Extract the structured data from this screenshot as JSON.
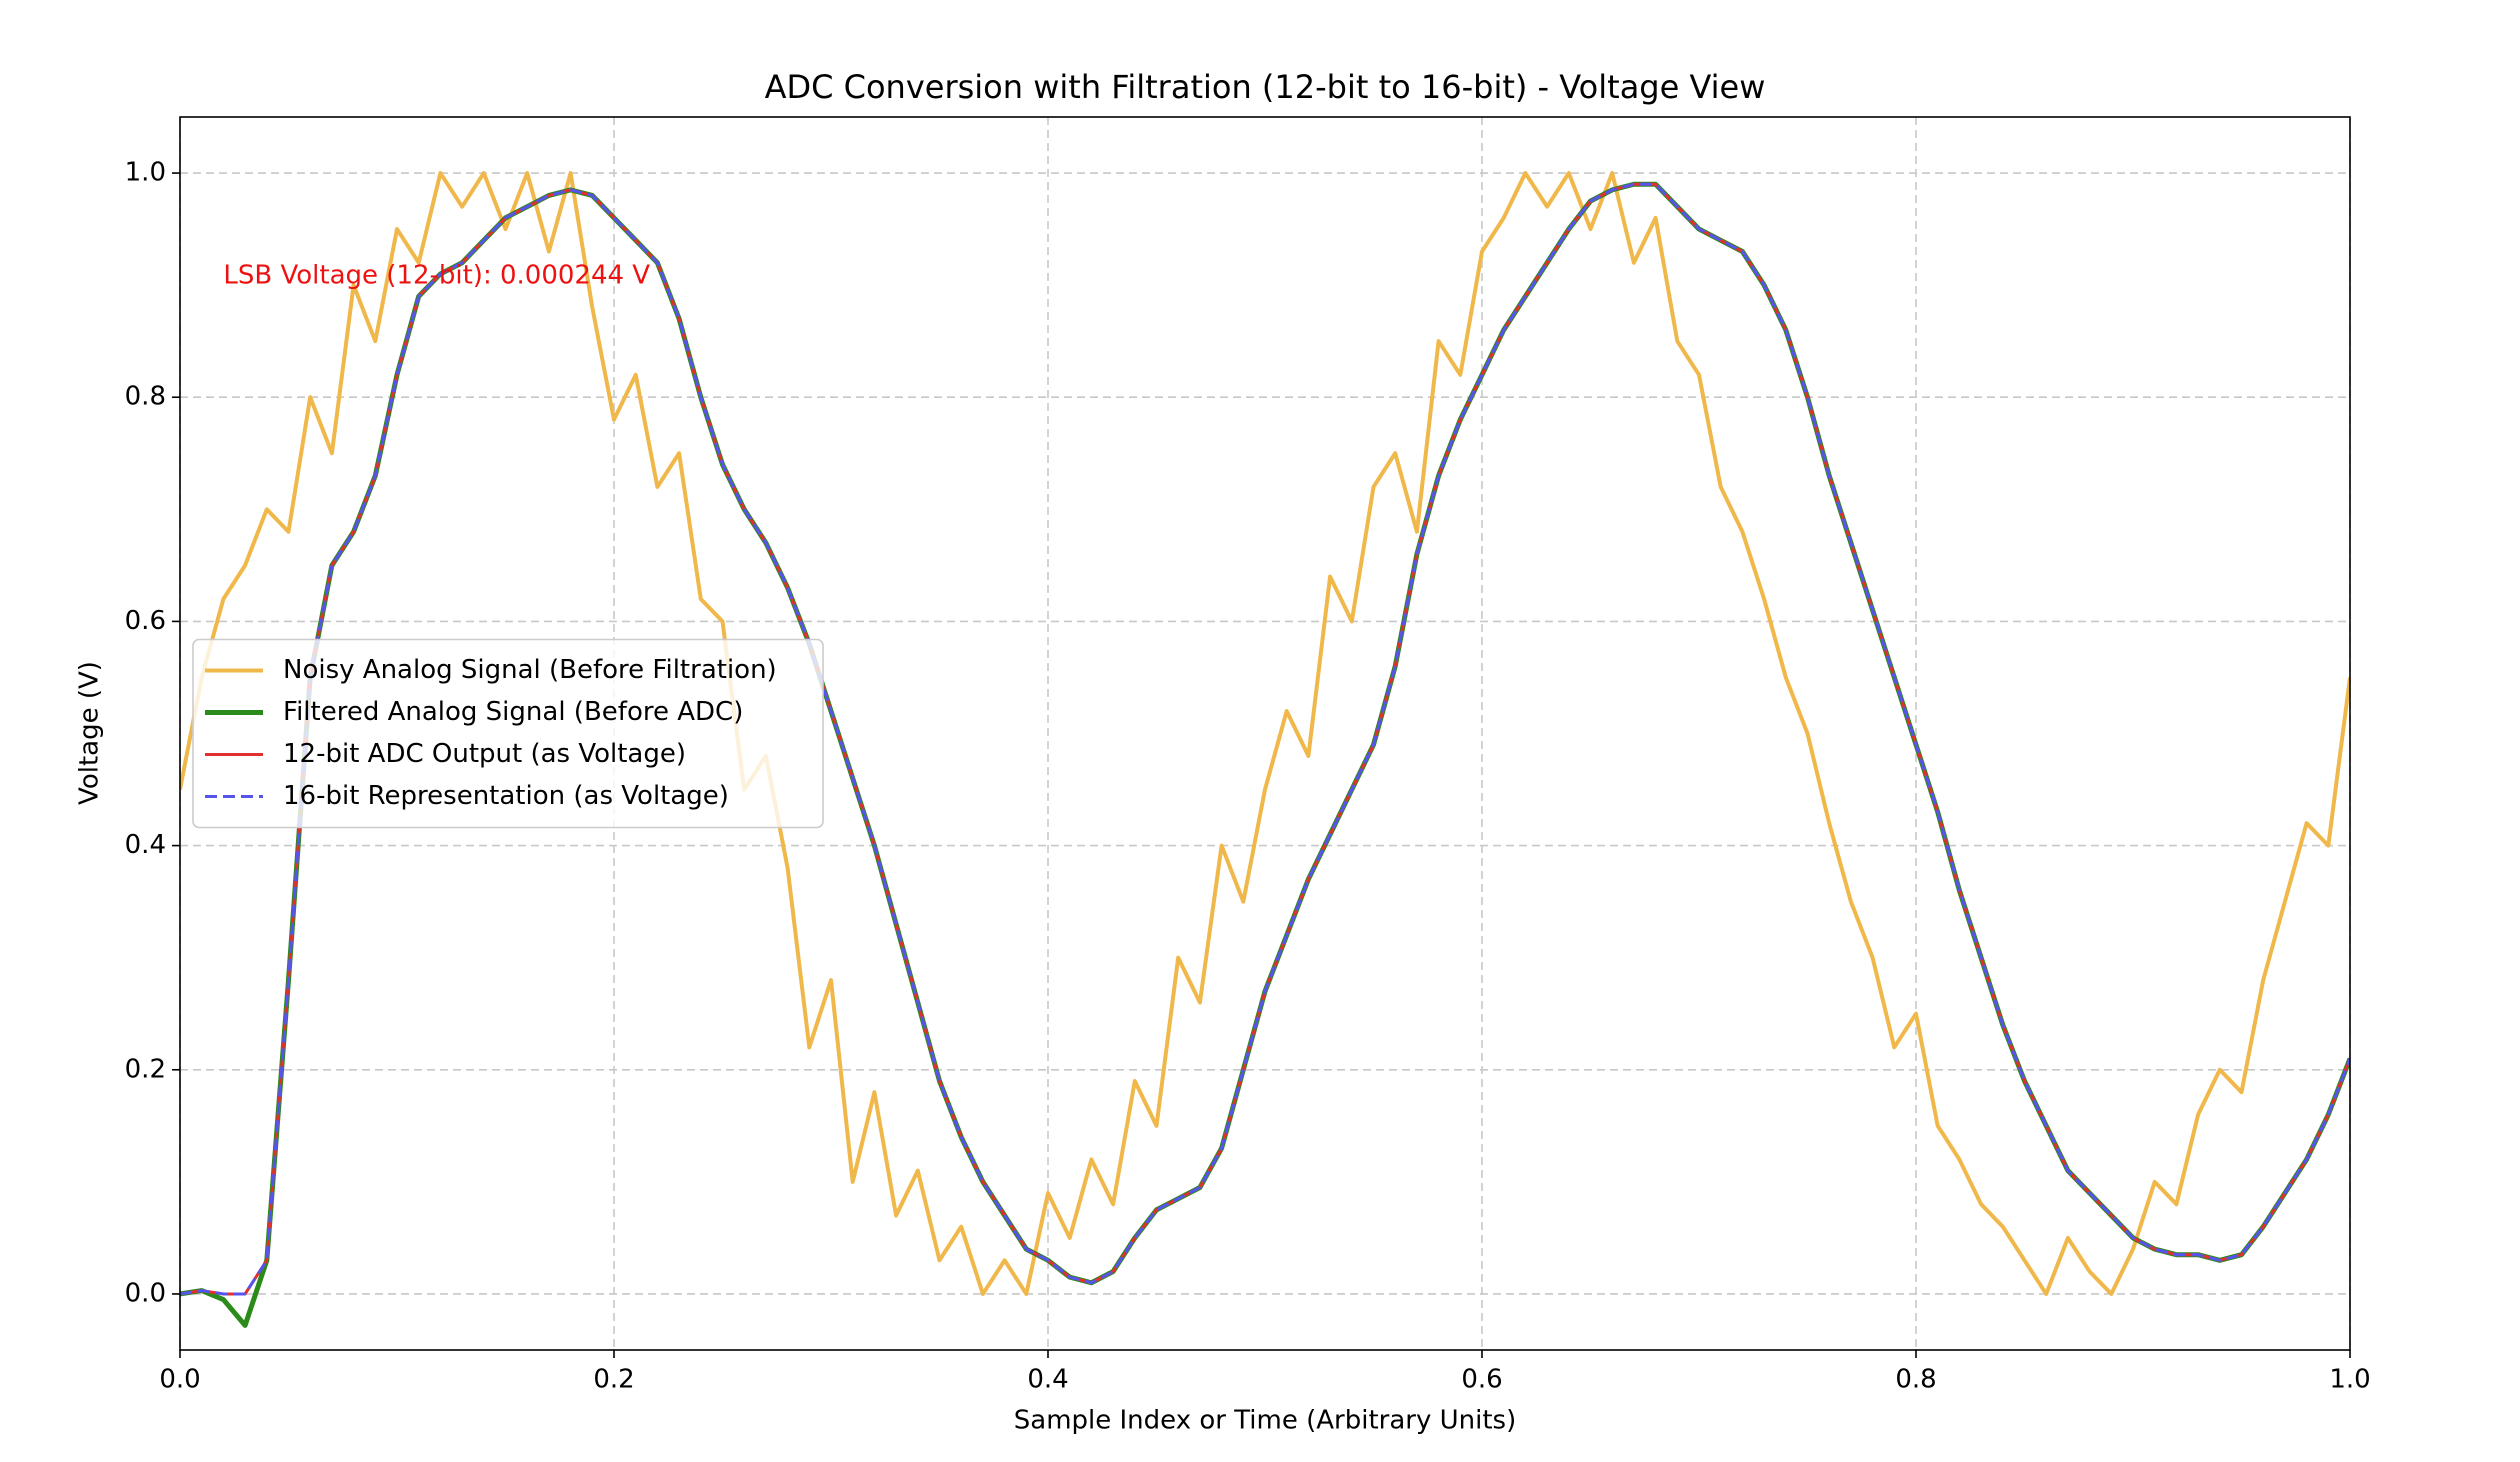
{
  "chart_data": {
    "type": "line",
    "title": "ADC Conversion with Filtration (12-bit to 16-bit) - Voltage View",
    "x_label": "Sample Index or Time (Arbitrary Units)",
    "y_label": "Voltage (V)",
    "annotation": "LSB Voltage (12-bit): 0.000244 V",
    "annotation_color": "#ee1111",
    "xlim": [
      0,
      1
    ],
    "ylim": [
      -0.05,
      1.05
    ],
    "xticks": [
      {
        "value": 0,
        "label": "0.0"
      },
      0.2,
      0.4,
      0.6,
      0.8,
      {
        "value": 1,
        "label": "1.0"
      }
    ],
    "yticks": [
      {
        "value": 0,
        "label": "0.0"
      },
      0.2,
      0.4,
      0.6,
      0.8,
      {
        "value": 1,
        "label": "1.0"
      }
    ],
    "grid": true,
    "legend": "center left",
    "x": [
      0.0,
      0.01,
      0.02,
      0.03,
      0.04,
      0.05,
      0.06,
      0.07,
      0.08,
      0.09,
      0.1,
      0.11,
      0.12,
      0.13,
      0.14,
      0.15,
      0.16,
      0.17,
      0.18,
      0.19,
      0.2,
      0.21,
      0.22,
      0.23,
      0.24,
      0.25,
      0.26,
      0.27,
      0.28,
      0.29,
      0.3,
      0.31,
      0.32,
      0.33,
      0.34,
      0.35,
      0.36,
      0.37,
      0.38,
      0.39,
      0.4,
      0.41,
      0.42,
      0.43,
      0.44,
      0.45,
      0.46,
      0.47,
      0.48,
      0.49,
      0.5,
      0.51,
      0.52,
      0.53,
      0.54,
      0.55,
      0.56,
      0.57,
      0.58,
      0.59,
      0.6,
      0.61,
      0.62,
      0.63,
      0.64,
      0.65,
      0.66,
      0.67,
      0.68,
      0.69,
      0.7,
      0.71,
      0.72,
      0.73,
      0.74,
      0.75,
      0.76,
      0.77,
      0.78,
      0.79,
      0.8,
      0.81,
      0.82,
      0.83,
      0.84,
      0.85,
      0.86,
      0.87,
      0.88,
      0.89,
      0.9,
      0.91,
      0.92,
      0.93,
      0.94,
      0.95,
      0.96,
      0.97,
      0.98,
      0.99,
      1.0
    ],
    "series": [
      {
        "name": "Noisy Analog Signal (Before Filtration)",
        "color": "#f0b84a",
        "width": 4,
        "dash": false,
        "values": [
          0.45,
          0.55,
          0.62,
          0.65,
          0.7,
          0.68,
          0.8,
          0.75,
          0.9,
          0.85,
          0.95,
          0.92,
          1.0,
          0.97,
          1.0,
          0.95,
          1.0,
          0.93,
          1.0,
          0.88,
          0.78,
          0.82,
          0.72,
          0.75,
          0.62,
          0.6,
          0.45,
          0.48,
          0.38,
          0.22,
          0.28,
          0.1,
          0.18,
          0.07,
          0.11,
          0.03,
          0.06,
          0.0,
          0.03,
          0.0,
          0.09,
          0.05,
          0.12,
          0.08,
          0.19,
          0.15,
          0.3,
          0.26,
          0.4,
          0.35,
          0.45,
          0.52,
          0.48,
          0.64,
          0.6,
          0.72,
          0.75,
          0.68,
          0.85,
          0.82,
          0.93,
          0.96,
          1.0,
          0.97,
          1.0,
          0.95,
          1.0,
          0.92,
          0.96,
          0.85,
          0.82,
          0.72,
          0.68,
          0.62,
          0.55,
          0.5,
          0.42,
          0.35,
          0.3,
          0.22,
          0.25,
          0.15,
          0.12,
          0.08,
          0.06,
          0.03,
          0.0,
          0.05,
          0.02,
          0.0,
          0.04,
          0.1,
          0.08,
          0.16,
          0.2,
          0.18,
          0.28,
          0.35,
          0.42,
          0.4,
          0.55
        ]
      },
      {
        "name": "Filtered Analog Signal (Before ADC)",
        "color": "#2a8a1a",
        "width": 5,
        "dash": false,
        "values": [
          0.0,
          0.003,
          -0.005,
          -0.028,
          0.03,
          0.28,
          0.55,
          0.65,
          0.68,
          0.73,
          0.82,
          0.89,
          0.91,
          0.92,
          0.94,
          0.96,
          0.97,
          0.98,
          0.985,
          0.98,
          0.96,
          0.94,
          0.92,
          0.87,
          0.8,
          0.74,
          0.7,
          0.67,
          0.63,
          0.58,
          0.52,
          0.46,
          0.4,
          0.33,
          0.26,
          0.19,
          0.14,
          0.1,
          0.07,
          0.04,
          0.03,
          0.015,
          0.01,
          0.02,
          0.05,
          0.075,
          0.085,
          0.095,
          0.13,
          0.2,
          0.27,
          0.32,
          0.37,
          0.41,
          0.45,
          0.49,
          0.56,
          0.66,
          0.73,
          0.78,
          0.82,
          0.86,
          0.89,
          0.92,
          0.95,
          0.975,
          0.985,
          0.99,
          0.99,
          0.97,
          0.95,
          0.94,
          0.93,
          0.9,
          0.86,
          0.8,
          0.73,
          0.67,
          0.61,
          0.55,
          0.49,
          0.43,
          0.36,
          0.3,
          0.24,
          0.19,
          0.15,
          0.11,
          0.09,
          0.07,
          0.05,
          0.04,
          0.035,
          0.035,
          0.03,
          0.035,
          0.06,
          0.09,
          0.12,
          0.16,
          0.21
        ]
      },
      {
        "name": "12-bit ADC Output (as Voltage)",
        "color": "#e03030",
        "width": 3,
        "dash": false,
        "values": [
          0.0,
          0.003,
          0.0,
          0.0,
          0.03,
          0.28,
          0.55,
          0.65,
          0.68,
          0.73,
          0.82,
          0.89,
          0.91,
          0.92,
          0.94,
          0.96,
          0.97,
          0.98,
          0.985,
          0.98,
          0.96,
          0.94,
          0.92,
          0.87,
          0.8,
          0.74,
          0.7,
          0.67,
          0.63,
          0.58,
          0.52,
          0.46,
          0.4,
          0.33,
          0.26,
          0.19,
          0.14,
          0.1,
          0.07,
          0.04,
          0.03,
          0.015,
          0.01,
          0.02,
          0.05,
          0.075,
          0.085,
          0.095,
          0.13,
          0.2,
          0.27,
          0.32,
          0.37,
          0.41,
          0.45,
          0.49,
          0.56,
          0.66,
          0.73,
          0.78,
          0.82,
          0.86,
          0.89,
          0.92,
          0.95,
          0.975,
          0.985,
          0.99,
          0.99,
          0.97,
          0.95,
          0.94,
          0.93,
          0.9,
          0.86,
          0.8,
          0.73,
          0.67,
          0.61,
          0.55,
          0.49,
          0.43,
          0.36,
          0.3,
          0.24,
          0.19,
          0.15,
          0.11,
          0.09,
          0.07,
          0.05,
          0.04,
          0.035,
          0.035,
          0.03,
          0.035,
          0.06,
          0.09,
          0.12,
          0.16,
          0.21
        ]
      },
      {
        "name": "16-bit Representation (as Voltage)",
        "color": "#5555ee",
        "width": 3,
        "dash": true,
        "values": [
          0.0,
          0.003,
          0.0,
          0.0,
          0.03,
          0.28,
          0.55,
          0.65,
          0.68,
          0.73,
          0.82,
          0.89,
          0.91,
          0.92,
          0.94,
          0.96,
          0.97,
          0.98,
          0.985,
          0.98,
          0.96,
          0.94,
          0.92,
          0.87,
          0.8,
          0.74,
          0.7,
          0.67,
          0.63,
          0.58,
          0.52,
          0.46,
          0.4,
          0.33,
          0.26,
          0.19,
          0.14,
          0.1,
          0.07,
          0.04,
          0.03,
          0.015,
          0.01,
          0.02,
          0.05,
          0.075,
          0.085,
          0.095,
          0.13,
          0.2,
          0.27,
          0.32,
          0.37,
          0.41,
          0.45,
          0.49,
          0.56,
          0.66,
          0.73,
          0.78,
          0.82,
          0.86,
          0.89,
          0.92,
          0.95,
          0.975,
          0.985,
          0.99,
          0.99,
          0.97,
          0.95,
          0.94,
          0.93,
          0.9,
          0.86,
          0.8,
          0.73,
          0.67,
          0.61,
          0.55,
          0.49,
          0.43,
          0.36,
          0.3,
          0.24,
          0.19,
          0.15,
          0.11,
          0.09,
          0.07,
          0.05,
          0.04,
          0.035,
          0.035,
          0.03,
          0.035,
          0.06,
          0.09,
          0.12,
          0.16,
          0.21
        ]
      }
    ]
  }
}
